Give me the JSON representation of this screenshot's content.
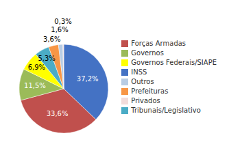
{
  "chart_data": {
    "type": "pie",
    "categories": [
      "INSS",
      "Forças Armadas",
      "Governos",
      "Governos Federais/SIAPE",
      "Tribunais/Legislativo",
      "Prefeituras",
      "Outros",
      "Privados"
    ],
    "values": [
      37.2,
      33.6,
      11.5,
      6.9,
      5.3,
      3.6,
      1.6,
      0.3
    ],
    "value_labels": [
      "37,2%",
      "33,6%",
      "11,5%",
      "6,9%",
      "5,3%",
      "3,6%",
      "1,6%",
      "0,3%"
    ],
    "colors": [
      "#4472C4",
      "#C0504D",
      "#9BBB59",
      "#FFFF00",
      "#4BACC6",
      "#F79646",
      "#B8CCE4",
      "#F2DCDB"
    ],
    "legend": "right",
    "data_labels": true
  }
}
